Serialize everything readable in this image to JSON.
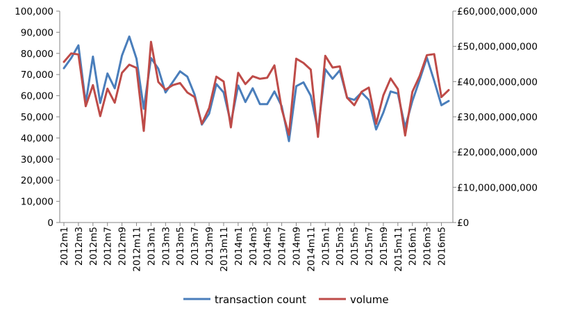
{
  "chart_data": {
    "type": "line",
    "title": "",
    "xlabel": "",
    "ylabel": "",
    "x": [
      "2012m1",
      "2012m2",
      "2012m3",
      "2012m4",
      "2012m5",
      "2012m6",
      "2012m7",
      "2012m8",
      "2012m9",
      "2012m10",
      "2012m11",
      "2012m12",
      "2013m1",
      "2013m2",
      "2013m3",
      "2013m4",
      "2013m5",
      "2013m6",
      "2013m7",
      "2013m8",
      "2013m9",
      "2013m10",
      "2013m11",
      "2013m12",
      "2014m1",
      "2014m2",
      "2014m3",
      "2014m4",
      "2014m5",
      "2014m6",
      "2014m7",
      "2014m8",
      "2014m9",
      "2014m10",
      "2014m11",
      "2014m12",
      "2015m1",
      "2015m2",
      "2015m3",
      "2015m4",
      "2015m5",
      "2015m6",
      "2015m7",
      "2015m8",
      "2015m9",
      "2015m10",
      "2015m11",
      "2015m12",
      "2016m1",
      "2016m2",
      "2016m3",
      "2016m4",
      "2016m5",
      "2016m6"
    ],
    "x_tick_labels": [
      "2012m1",
      "2012m3",
      "2012m5",
      "2012m7",
      "2012m9",
      "2012m11",
      "2013m1",
      "2013m3",
      "2013m5",
      "2013m7",
      "2013m9",
      "2013m11",
      "2014m1",
      "2014m3",
      "2014m5",
      "2014m7",
      "2014m9",
      "2014m11",
      "2015m1",
      "2015m3",
      "2015m5",
      "2015m7",
      "2015m9",
      "2015m11",
      "2016m1",
      "2016m3",
      "2016m5"
    ],
    "y_left": {
      "ylim": [
        0,
        100000
      ],
      "tick_labels": [
        "0",
        "10,000",
        "20,000",
        "30,000",
        "40,000",
        "50,000",
        "60,000",
        "70,000",
        "80,000",
        "90,000",
        "100,000"
      ]
    },
    "y_right": {
      "ylim": [
        0,
        60000000000
      ],
      "tick_labels": [
        "£0",
        "£10,000,000,000",
        "£20,000,000,000",
        "£30,000,000,000",
        "£40,000,000,000",
        "£50,000,000,000",
        "£60,000,000,000"
      ]
    },
    "grid": false,
    "legend_position": "bottom",
    "series": [
      {
        "name": "transaction count",
        "axis": "left",
        "color": "#4a7ebb",
        "values": [
          73000,
          77800,
          83800,
          56500,
          78500,
          56500,
          70500,
          63500,
          79000,
          88000,
          77500,
          53800,
          77800,
          72800,
          61500,
          66500,
          71500,
          69000,
          60500,
          46300,
          51500,
          65500,
          61500,
          47000,
          64800,
          57000,
          63500,
          56000,
          56000,
          62000,
          55000,
          38500,
          64500,
          66300,
          60000,
          43500,
          72500,
          68000,
          72000,
          59000,
          58000,
          61500,
          58000,
          44000,
          52000,
          62000,
          61000,
          45000,
          57500,
          67500,
          78000,
          67000,
          55500,
          57500
        ]
      },
      {
        "name": "volume",
        "axis": "right",
        "color": "#be4b48",
        "values": [
          45600000000,
          48000000000,
          47700000000,
          33000000000,
          39000000000,
          30200000000,
          38000000000,
          34000000000,
          42500000000,
          44800000000,
          43900000000,
          26000000000,
          51300000000,
          39900000000,
          37700000000,
          39000000000,
          39600000000,
          36900000000,
          35600000000,
          28000000000,
          32500000000,
          41400000000,
          40000000000,
          27000000000,
          42500000000,
          39300000000,
          41500000000,
          40800000000,
          41100000000,
          44600000000,
          32200000000,
          24900000000,
          46500000000,
          45300000000,
          43400000000,
          24300000000,
          47300000000,
          44000000000,
          44300000000,
          35400000000,
          33300000000,
          37100000000,
          38300000000,
          28000000000,
          36100000000,
          40900000000,
          37900000000,
          24700000000,
          37100000000,
          41600000000,
          47500000000,
          47800000000,
          35600000000,
          37600000000
        ]
      }
    ]
  }
}
